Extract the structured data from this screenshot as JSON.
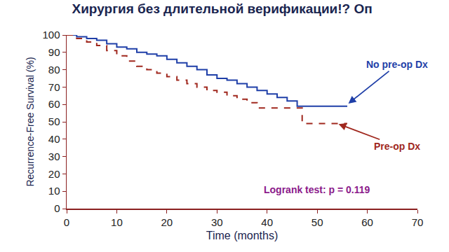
{
  "chart_data": {
    "type": "line",
    "title": "Хирургия без длительной верификации!? Оп",
    "x_label": "Time (months)",
    "y_label": "Recurrence-Free Survival (%)",
    "xlim": [
      0,
      70
    ],
    "xticks": [
      0,
      10,
      20,
      30,
      40,
      50,
      60,
      70
    ],
    "ylim": [
      0,
      100
    ],
    "yticks": [
      0,
      10,
      20,
      30,
      40,
      50,
      60,
      70,
      80,
      90,
      100
    ],
    "grid": false,
    "series": [
      {
        "name": "No pre-op Dx",
        "color": "#1f3fa8",
        "line_style": "solid",
        "x": [
          0,
          2,
          4,
          6,
          8,
          10,
          12,
          14,
          16,
          18,
          20,
          22,
          24,
          26,
          28,
          30,
          32,
          34,
          36,
          38,
          40,
          42,
          44,
          46,
          56
        ],
        "values": [
          100,
          99,
          98,
          97,
          95,
          93,
          92,
          90,
          89,
          88,
          86,
          84,
          82,
          80,
          77,
          75,
          74,
          72,
          70,
          68,
          66,
          64,
          62,
          59,
          59
        ]
      },
      {
        "name": "Pre-op Dx",
        "color": "#a0281e",
        "line_style": "dashed",
        "x": [
          0,
          2,
          4,
          6,
          8,
          10,
          12,
          14,
          16,
          18,
          20,
          22,
          24,
          26,
          28,
          30,
          32,
          34,
          36,
          38,
          47,
          56
        ],
        "values": [
          100,
          98,
          96,
          94,
          91,
          88,
          85,
          82,
          80,
          78,
          76,
          74,
          72,
          70,
          68,
          67,
          65,
          63,
          61,
          58,
          49,
          49
        ]
      }
    ],
    "annotations": [
      {
        "text": "No pre-op Dx",
        "x": 66,
        "y": 83,
        "arrow_x": 56,
        "arrow_y": 60,
        "color": "#1f3fa8"
      },
      {
        "text": "Pre-op Dx",
        "x": 66,
        "y": 36,
        "arrow_x": 54,
        "arrow_y": 49,
        "color": "#a0281e"
      },
      {
        "text": "Logrank test: p = 0.119",
        "x": 50,
        "y": 11,
        "color": "#8b1a8b"
      }
    ]
  }
}
